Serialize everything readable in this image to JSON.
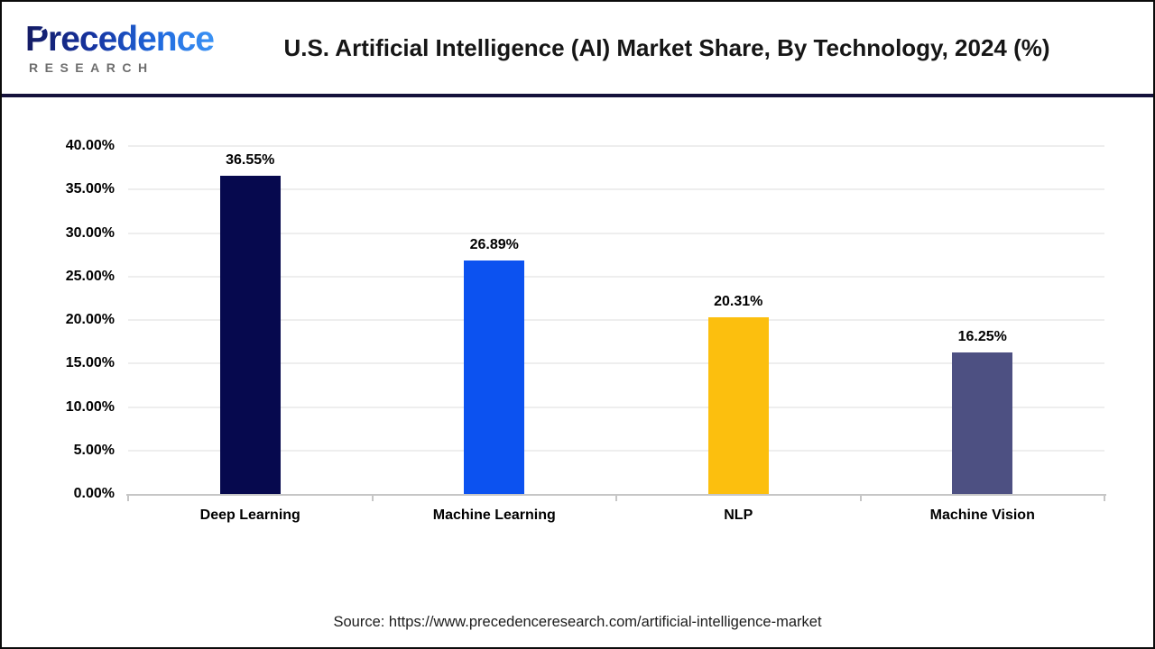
{
  "header": {
    "logo_primary": "Precedence",
    "logo_secondary": "RESEARCH",
    "title": "U.S. Artificial Intelligence (AI) Market Share, By Technology, 2024 (%)"
  },
  "chart_data": {
    "type": "bar",
    "title": "U.S. Artificial Intelligence (AI) Market Share, By Technology, 2024 (%)",
    "categories": [
      "Deep Learning",
      "Machine Learning",
      "NLP",
      "Machine Vision"
    ],
    "values": [
      36.55,
      26.89,
      20.31,
      16.25
    ],
    "value_labels": [
      "36.55%",
      "26.89%",
      "20.31%",
      "16.25%"
    ],
    "bar_colors": [
      "#06094e",
      "#0c52f0",
      "#fcbf0e",
      "#4d5082"
    ],
    "xlabel": "",
    "ylabel": "",
    "ylim": [
      0,
      40
    ],
    "ytick_interval": 5,
    "ytick_labels": [
      "0.00%",
      "5.00%",
      "10.00%",
      "15.00%",
      "20.00%",
      "25.00%",
      "30.00%",
      "35.00%",
      "40.00%"
    ],
    "grid": true,
    "legend_position": "none"
  },
  "footer": {
    "source": "Source: https://www.precedenceresearch.com/artificial-intelligence-market"
  },
  "colors": {
    "frame_border": "#0b0b0b",
    "header_rule": "#15123b",
    "gridline": "#eeeeee",
    "axis_line": "#c6c6c6",
    "logo_gradient_start": "#141b63",
    "logo_gradient_end": "#3b93f5",
    "logo_secondary_color": "#6e6e6e"
  }
}
